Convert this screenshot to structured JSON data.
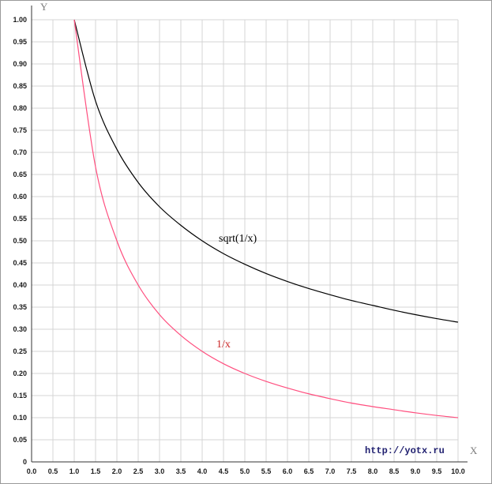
{
  "chart_data": {
    "type": "line",
    "title": "",
    "xlabel": "X",
    "ylabel": "Y",
    "xlim": [
      0.0,
      10.0
    ],
    "ylim": [
      0.0,
      1.0
    ],
    "x_ticks": [
      "0.0",
      "0.5",
      "1.0",
      "1.5",
      "2.0",
      "2.5",
      "3.0",
      "3.5",
      "4.0",
      "4.5",
      "5.0",
      "5.5",
      "6.0",
      "6.5",
      "7.0",
      "7.5",
      "8.0",
      "8.5",
      "9.0",
      "9.5",
      "10.0"
    ],
    "y_ticks": [
      "0",
      "0.05",
      "0.10",
      "0.15",
      "0.20",
      "0.25",
      "0.30",
      "0.35",
      "0.40",
      "0.45",
      "0.50",
      "0.55",
      "0.60",
      "0.65",
      "0.70",
      "0.75",
      "0.80",
      "0.85",
      "0.90",
      "0.95",
      "1.00"
    ],
    "grid": true,
    "series": [
      {
        "name": "sqrt(1/x)",
        "color": "#000000",
        "x": [
          1.0,
          1.5,
          2.0,
          2.5,
          3.0,
          3.5,
          4.0,
          4.5,
          5.0,
          5.5,
          6.0,
          6.5,
          7.0,
          7.5,
          8.0,
          8.5,
          9.0,
          9.5,
          10.0
        ],
        "y": [
          1.0,
          0.816,
          0.707,
          0.632,
          0.577,
          0.535,
          0.5,
          0.471,
          0.447,
          0.426,
          0.408,
          0.392,
          0.378,
          0.365,
          0.354,
          0.343,
          0.333,
          0.324,
          0.316
        ]
      },
      {
        "name": "1/x",
        "color": "#ff4f7f",
        "x": [
          1.0,
          1.5,
          2.0,
          2.5,
          3.0,
          3.5,
          4.0,
          4.5,
          5.0,
          5.5,
          6.0,
          6.5,
          7.0,
          7.5,
          8.0,
          8.5,
          9.0,
          9.5,
          10.0
        ],
        "y": [
          1.0,
          0.667,
          0.5,
          0.4,
          0.333,
          0.286,
          0.25,
          0.222,
          0.2,
          0.182,
          0.167,
          0.154,
          0.143,
          0.133,
          0.125,
          0.118,
          0.111,
          0.105,
          0.1
        ]
      }
    ],
    "annotations": [
      {
        "text": "sqrt(1/x)",
        "color": "#000000"
      },
      {
        "text": "1/x",
        "color": "#cc2a2a"
      }
    ]
  },
  "watermark": "http://yotx.ru"
}
